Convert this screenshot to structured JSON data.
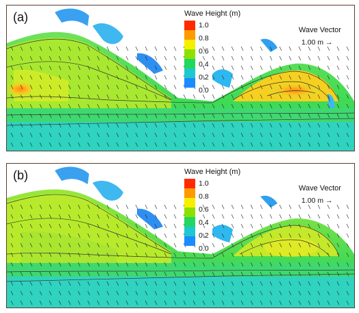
{
  "panels": [
    {
      "label": "(a)"
    },
    {
      "label": "(b)"
    }
  ],
  "colorbar": {
    "title": "Wave Height (m)",
    "ticks": [
      "1.0",
      "0.8",
      "0.6",
      "0.4",
      "0.2",
      "0.0"
    ],
    "colors": [
      "#ff2a00",
      "#ff9a00",
      "#f4f000",
      "#8ee000",
      "#20d860",
      "#1ec8d0",
      "#1a8cff"
    ]
  },
  "vector_legend": {
    "title": "Wave Vector",
    "scale": "1.00 m →"
  }
}
